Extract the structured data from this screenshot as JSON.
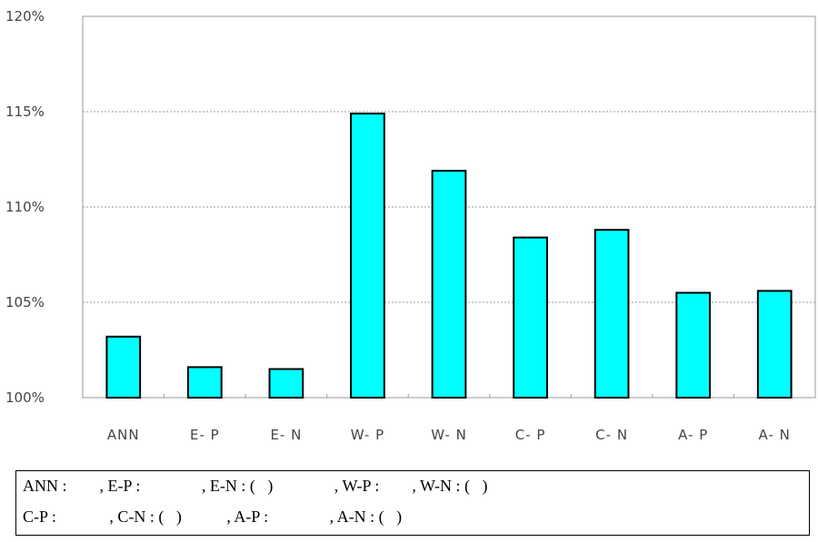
{
  "chart_data": {
    "type": "bar",
    "title": "",
    "xlabel": "",
    "ylabel": "",
    "categories": [
      "ANN",
      "E- P",
      "E- N",
      "W- P",
      "W- N",
      "C- P",
      "C- N",
      "A- P",
      "A- N"
    ],
    "values": [
      103.2,
      101.6,
      101.5,
      114.9,
      111.9,
      108.4,
      108.8,
      105.5,
      105.6
    ],
    "ylim": [
      100,
      120
    ],
    "yticks": [
      100,
      105,
      110,
      115,
      120
    ],
    "ytick_labels": [
      "100%",
      "105%",
      "110%",
      "115%",
      "120%"
    ],
    "grid": true,
    "bar_color": "#00ffff"
  },
  "legend": {
    "line1": "ANN :        , E-P :               , E-N : (   )               , W-P :        , W-N : (   )",
    "line2": "C-P :             , C-N : (   )           , A-P :               , A-N : (   )"
  }
}
